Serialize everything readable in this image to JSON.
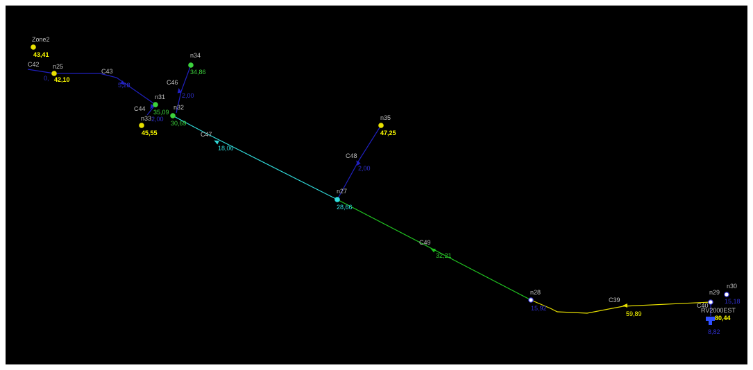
{
  "nodes": [
    {
      "id": "Zone2",
      "label": "Zone2",
      "value": "43,41",
      "color": "#e8e000",
      "valueColor": "#ffff00",
      "labelColor": "#c0c0c0"
    },
    {
      "id": "n25",
      "label": "n25",
      "value": "42,10",
      "color": "#e8e000",
      "valueColor": "#ffff00",
      "labelColor": "#c0c0c0"
    },
    {
      "id": "n34",
      "label": "n34",
      "value": "34,86",
      "color": "#3cd23c",
      "valueColor": "#3cd23c",
      "labelColor": "#c0c0c0"
    },
    {
      "id": "n31",
      "label": "n31",
      "value": "35,09",
      "color": "#3cd23c",
      "valueColor": "#3cd23c",
      "labelColor": "#c0c0c0"
    },
    {
      "id": "n32",
      "label": "n32",
      "value": "30,69",
      "color": "#3cd23c",
      "valueColor": "#3cd23c",
      "labelColor": "#c0c0c0"
    },
    {
      "id": "n33",
      "label": "n33",
      "value": "45,55",
      "color": "#e8e000",
      "valueColor": "#ffff00",
      "labelColor": "#c0c0c0"
    },
    {
      "id": "n35",
      "label": "n35",
      "value": "47,25",
      "color": "#e8e000",
      "valueColor": "#ffff00",
      "labelColor": "#c0c0c0"
    },
    {
      "id": "n27",
      "label": "n27",
      "value": "28,66",
      "color": "#30e0e0",
      "valueColor": "#30e0e0",
      "labelColor": "#c0c0c0"
    },
    {
      "id": "n28",
      "label": "n28",
      "value": "15,92",
      "color": "#3a3ae0",
      "valueColor": "#3030d0",
      "labelColor": "#c0c0c0"
    },
    {
      "id": "n29",
      "label": "n29",
      "value": "15,18",
      "color": "#3a3ae0",
      "valueColor": "#3030d0",
      "labelColor": "#c0c0c0"
    },
    {
      "id": "n30",
      "label": "n30",
      "value": "",
      "color": "#3a3ae0",
      "valueColor": "#3030d0",
      "labelColor": "#c0c0c0"
    }
  ],
  "links": [
    {
      "id": "C42",
      "label": "C42",
      "value": "0,",
      "color": "#2020c0",
      "valueColor": "#3030d0"
    },
    {
      "id": "C43",
      "label": "C43",
      "value": "5,28",
      "color": "#2020c0",
      "valueColor": "#3030d0"
    },
    {
      "id": "C44",
      "label": "C44",
      "value": "2,00",
      "color": "#2020c0",
      "valueColor": "#3030d0"
    },
    {
      "id": "C46",
      "label": "C46",
      "value": "2,00",
      "color": "#2020c0",
      "valueColor": "#3030d0"
    },
    {
      "id": "C47",
      "label": "C47",
      "value": "18,06",
      "color": "#30d8d8",
      "valueColor": "#30d8d8"
    },
    {
      "id": "C48",
      "label": "C48",
      "value": "2,00",
      "color": "#2020c0",
      "valueColor": "#3030d0"
    },
    {
      "id": "C49",
      "label": "C49",
      "value": "32,21",
      "color": "#20c020",
      "valueColor": "#30d030"
    },
    {
      "id": "C39",
      "label": "C39",
      "value": "59,89",
      "color": "#e8e000",
      "valueColor": "#ffff00"
    },
    {
      "id": "C40",
      "label": "C40",
      "value": "",
      "color": "#2020c0",
      "valueColor": "#3030d0"
    }
  ],
  "extraValues": {
    "c_hidden": "0,"
  },
  "tank": {
    "label": "RV2000EST",
    "level": "80,44",
    "flow": "8,82",
    "color": "#3050ff"
  },
  "labelColor": "#c0c0c0"
}
